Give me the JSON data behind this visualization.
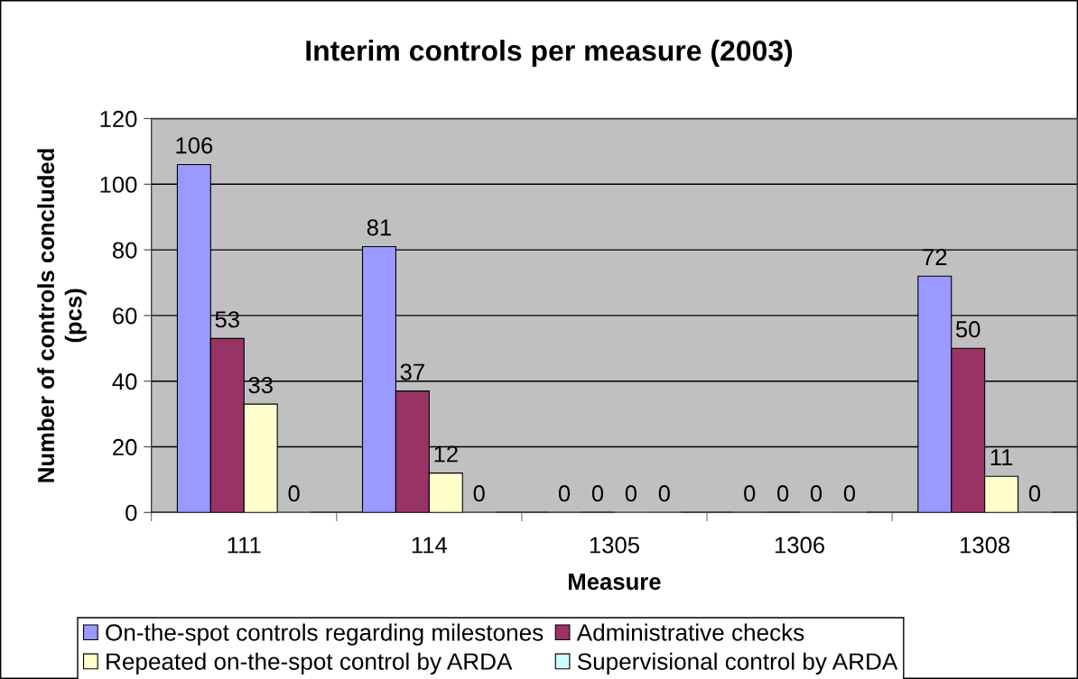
{
  "chart_data": {
    "type": "bar",
    "title": "Interim controls per measure (2003)",
    "xlabel": "Measure",
    "ylabel": "Number of controls concluded\n(pcs)",
    "categories": [
      "111",
      "114",
      "1305",
      "1306",
      "1308"
    ],
    "series": [
      {
        "name": "On-the-spot controls regarding milestones",
        "color": "#9999ff",
        "values": [
          106,
          81,
          0,
          0,
          72
        ]
      },
      {
        "name": "Administrative checks",
        "color": "#993366",
        "values": [
          53,
          37,
          0,
          0,
          50
        ]
      },
      {
        "name": "Repeated on-the-spot control by ARDA",
        "color": "#ffffcc",
        "values": [
          33,
          12,
          0,
          0,
          11
        ]
      },
      {
        "name": "Supervisional control by ARDA",
        "color": "#ccffff",
        "values": [
          0,
          0,
          0,
          0,
          0
        ]
      }
    ],
    "ylim": [
      0,
      120
    ],
    "yticks": [
      0,
      20,
      40,
      60,
      80,
      100,
      120
    ],
    "grid": "y",
    "legend": "bottom",
    "data_labels": true
  }
}
